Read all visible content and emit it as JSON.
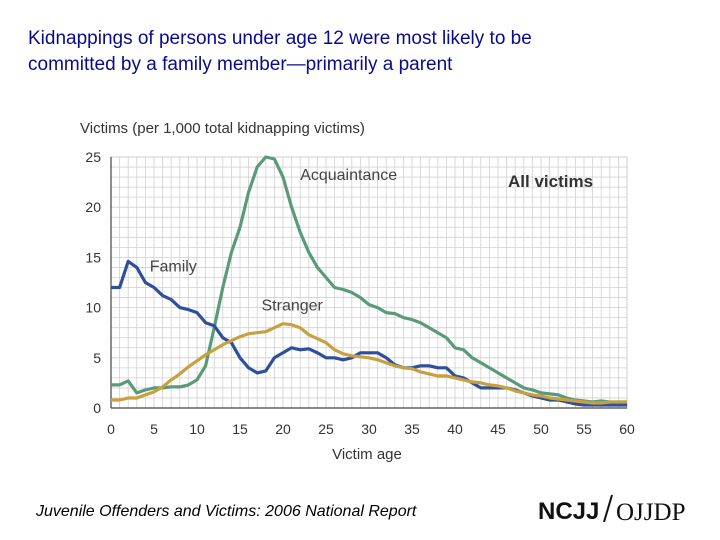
{
  "title_lines": [
    "Kidnappings of persons under age 12 were most likely to be",
    "committed by a family member—primarily a parent"
  ],
  "footer": "Juvenile Offenders and Victims: 2006 National Report",
  "logos": {
    "left": "NCJJ",
    "right": "OJJDP"
  },
  "chart_data": {
    "type": "line",
    "ylabel": "Victims (per 1,000 total kidnapping victims)",
    "xlabel": "Victim age",
    "annotation": "All victims",
    "xlim": [
      0,
      60
    ],
    "ylim": [
      0,
      25
    ],
    "xticks": [
      0,
      5,
      10,
      15,
      20,
      25,
      30,
      35,
      40,
      45,
      50,
      55,
      60
    ],
    "yticks": [
      0,
      5,
      10,
      15,
      20,
      25
    ],
    "x": [
      0,
      1,
      2,
      3,
      4,
      5,
      6,
      7,
      8,
      9,
      10,
      11,
      12,
      13,
      14,
      15,
      16,
      17,
      18,
      19,
      20,
      21,
      22,
      23,
      24,
      25,
      26,
      27,
      28,
      29,
      30,
      31,
      32,
      33,
      34,
      35,
      36,
      37,
      38,
      39,
      40,
      41,
      42,
      43,
      44,
      45,
      46,
      47,
      48,
      49,
      50,
      51,
      52,
      53,
      54,
      55,
      56,
      57,
      58,
      59,
      60
    ],
    "series": [
      {
        "name": "Acquaintance",
        "color": "#5a9a78",
        "values": [
          2.3,
          2.3,
          2.7,
          1.5,
          1.8,
          2.0,
          2.0,
          2.1,
          2.1,
          2.3,
          2.8,
          4.2,
          8.0,
          12.0,
          15.5,
          18.0,
          21.5,
          24.0,
          25.0,
          24.8,
          23.0,
          20.0,
          17.5,
          15.5,
          14.0,
          13.0,
          12.0,
          11.8,
          11.5,
          11.0,
          10.3,
          10.0,
          9.5,
          9.4,
          9.0,
          8.8,
          8.5,
          8.0,
          7.5,
          7.0,
          6.0,
          5.8,
          5.0,
          4.5,
          4.0,
          3.5,
          3.0,
          2.5,
          2.0,
          1.8,
          1.5,
          1.4,
          1.3,
          1.0,
          0.8,
          0.7,
          0.6,
          0.7,
          0.6,
          0.6,
          0.6
        ]
      },
      {
        "name": "Family",
        "color": "#2e4f9a",
        "values": [
          12.0,
          12.0,
          14.6,
          14.0,
          12.5,
          12.0,
          11.2,
          10.8,
          10.0,
          9.8,
          9.5,
          8.5,
          8.2,
          7.0,
          6.5,
          5.0,
          4.0,
          3.5,
          3.7,
          5.0,
          5.5,
          6.0,
          5.8,
          5.9,
          5.5,
          5.0,
          5.0,
          4.8,
          5.0,
          5.5,
          5.5,
          5.5,
          5.0,
          4.3,
          4.0,
          4.0,
          4.2,
          4.2,
          4.0,
          4.0,
          3.2,
          3.0,
          2.5,
          2.0,
          2.0,
          2.0,
          2.0,
          1.8,
          1.5,
          1.2,
          1.0,
          0.8,
          0.8,
          0.6,
          0.4,
          0.3,
          0.3,
          0.3,
          0.3,
          0.3,
          0.3
        ]
      },
      {
        "name": "Stranger",
        "color": "#c8a040",
        "values": [
          0.8,
          0.8,
          1.0,
          1.0,
          1.3,
          1.6,
          2.1,
          2.8,
          3.4,
          4.1,
          4.7,
          5.3,
          5.8,
          6.3,
          6.7,
          7.1,
          7.4,
          7.5,
          7.6,
          8.0,
          8.4,
          8.3,
          8.0,
          7.3,
          6.9,
          6.5,
          5.8,
          5.4,
          5.2,
          5.1,
          5.0,
          4.8,
          4.5,
          4.2,
          4.0,
          3.9,
          3.6,
          3.4,
          3.2,
          3.2,
          3.0,
          2.8,
          2.6,
          2.5,
          2.3,
          2.2,
          2.0,
          1.7,
          1.5,
          1.3,
          1.2,
          1.0,
          0.9,
          0.8,
          0.7,
          0.6,
          0.5,
          0.5,
          0.6,
          0.6,
          0.6
        ]
      }
    ],
    "series_label_positions": {
      "Acquaintance": [
        22,
        22.7
      ],
      "Family": [
        4.5,
        13.6
      ],
      "Stranger": [
        17.5,
        9.7
      ]
    }
  }
}
